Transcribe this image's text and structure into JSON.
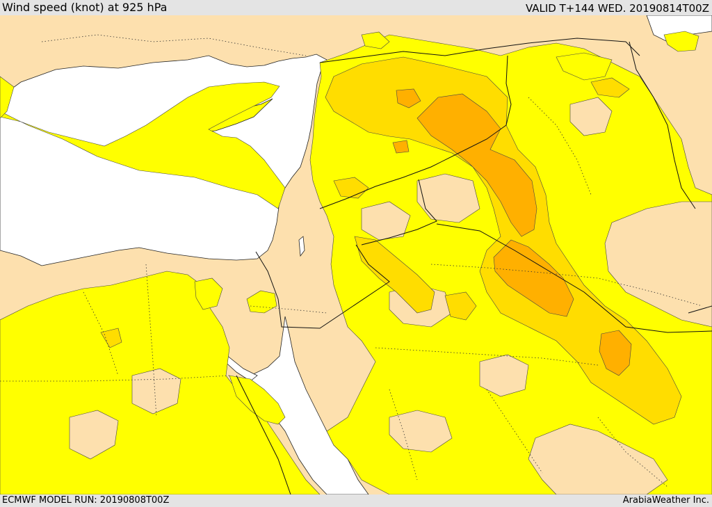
{
  "header": {
    "title": "Wind speed (knot) at 925 hPa",
    "valid_time": "VALID T+144 WED. 20190814T00Z"
  },
  "footer": {
    "model_run": "ECMWF MODEL RUN: 20190808T00Z",
    "credit": "ArabiaWeather Inc."
  },
  "map": {
    "region": "Eastern Mediterranean, Levant, Iraq, Arabian Peninsula",
    "colors": {
      "sea": "#ffffff",
      "land_calm": "#fde0ae",
      "wind_light": "#ffff00",
      "wind_moderate": "#ffdd00",
      "wind_strong": "#ffb000",
      "border": "#000000"
    }
  }
}
